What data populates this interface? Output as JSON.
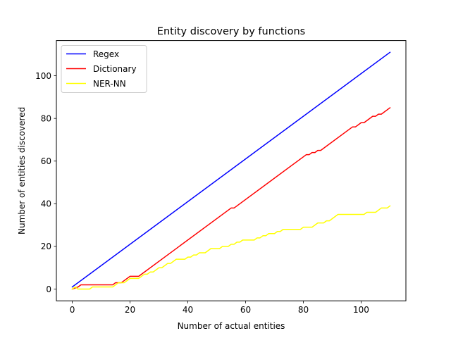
{
  "chart_data": {
    "type": "line",
    "title": "Entity discovery by functions",
    "xlabel": "Number of actual entities",
    "ylabel": "Number of entities discovered",
    "xlim": [
      -5.5,
      115.5
    ],
    "ylim": [
      -5.5,
      116.5
    ],
    "xticks": [
      0,
      20,
      40,
      60,
      80,
      100
    ],
    "yticks": [
      0,
      20,
      40,
      60,
      80,
      100
    ],
    "grid": false,
    "legend_position": "top-left",
    "series": [
      {
        "name": "Regex",
        "color": "#0000ff",
        "points": [
          [
            0,
            1
          ],
          [
            110,
            111
          ]
        ]
      },
      {
        "name": "Dictionary",
        "color": "#ff0000",
        "points": [
          [
            0,
            0
          ],
          [
            2,
            1
          ],
          [
            3,
            2
          ],
          [
            14,
            2
          ],
          [
            15,
            3
          ],
          [
            17,
            3
          ],
          [
            20,
            6
          ],
          [
            23,
            6
          ],
          [
            33,
            16
          ],
          [
            55,
            38
          ],
          [
            56,
            38
          ],
          [
            81,
            63
          ],
          [
            82,
            63
          ],
          [
            83,
            64
          ],
          [
            84,
            64
          ],
          [
            85,
            65
          ],
          [
            86,
            65
          ],
          [
            96,
            75
          ],
          [
            97,
            76
          ],
          [
            98,
            76
          ],
          [
            100,
            78
          ],
          [
            101,
            78
          ],
          [
            104,
            81
          ],
          [
            105,
            81
          ],
          [
            106,
            82
          ],
          [
            107,
            82
          ],
          [
            110,
            85
          ]
        ]
      },
      {
        "name": "NER-NN",
        "color": "#ffff00",
        "points": [
          [
            0,
            0
          ],
          [
            1,
            1
          ],
          [
            2,
            0
          ],
          [
            6,
            0
          ],
          [
            7,
            1
          ],
          [
            14,
            1
          ],
          [
            15,
            2
          ],
          [
            16,
            3
          ],
          [
            18,
            3
          ],
          [
            20,
            5
          ],
          [
            23,
            5
          ],
          [
            25,
            7
          ],
          [
            26,
            7
          ],
          [
            27,
            8
          ],
          [
            28,
            8
          ],
          [
            30,
            10
          ],
          [
            31,
            10
          ],
          [
            32,
            11
          ],
          [
            33,
            12
          ],
          [
            34,
            12
          ],
          [
            36,
            14
          ],
          [
            39,
            14
          ],
          [
            40,
            15
          ],
          [
            41,
            15
          ],
          [
            42,
            16
          ],
          [
            43,
            16
          ],
          [
            44,
            17
          ],
          [
            46,
            17
          ],
          [
            48,
            19
          ],
          [
            51,
            19
          ],
          [
            52,
            20
          ],
          [
            54,
            20
          ],
          [
            55,
            21
          ],
          [
            56,
            21
          ],
          [
            57,
            22
          ],
          [
            58,
            22
          ],
          [
            59,
            23
          ],
          [
            63,
            23
          ],
          [
            64,
            24
          ],
          [
            65,
            24
          ],
          [
            66,
            25
          ],
          [
            67,
            25
          ],
          [
            68,
            26
          ],
          [
            70,
            26
          ],
          [
            71,
            27
          ],
          [
            72,
            27
          ],
          [
            73,
            28
          ],
          [
            79,
            28
          ],
          [
            80,
            29
          ],
          [
            83,
            29
          ],
          [
            84,
            30
          ],
          [
            85,
            31
          ],
          [
            87,
            31
          ],
          [
            88,
            32
          ],
          [
            89,
            32
          ],
          [
            91,
            34
          ],
          [
            92,
            35
          ],
          [
            101,
            35
          ],
          [
            102,
            36
          ],
          [
            105,
            36
          ],
          [
            106,
            37
          ],
          [
            107,
            38
          ],
          [
            109,
            38
          ],
          [
            110,
            39
          ]
        ]
      }
    ]
  }
}
